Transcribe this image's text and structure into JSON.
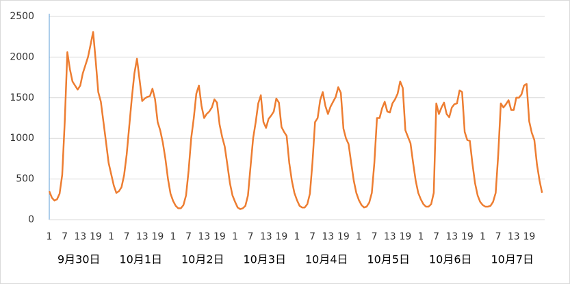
{
  "chart_data": {
    "type": "line",
    "categories": [
      "1",
      null,
      null,
      null,
      null,
      null,
      "7",
      null,
      null,
      null,
      null,
      null,
      "13",
      null,
      null,
      null,
      null,
      null,
      "19",
      null,
      null,
      null,
      null,
      null,
      "1",
      null,
      null,
      null,
      null,
      null,
      "7",
      null,
      null,
      null,
      null,
      null,
      "13",
      null,
      null,
      null,
      null,
      null,
      "19",
      null,
      null,
      null,
      null,
      null,
      "1",
      null,
      null,
      null,
      null,
      null,
      "7",
      null,
      null,
      null,
      null,
      null,
      "13",
      null,
      null,
      null,
      null,
      null,
      "19",
      null,
      null,
      null,
      null,
      null,
      "1",
      null,
      null,
      null,
      null,
      null,
      "7",
      null,
      null,
      null,
      null,
      null,
      "13",
      null,
      null,
      null,
      null,
      null,
      "19",
      null,
      null,
      null,
      null,
      null,
      "1",
      null,
      null,
      null,
      null,
      null,
      "7",
      null,
      null,
      null,
      null,
      null,
      "13",
      null,
      null,
      null,
      null,
      null,
      "19",
      null,
      null,
      null,
      null,
      null,
      "1",
      null,
      null,
      null,
      null,
      null,
      "7",
      null,
      null,
      null,
      null,
      null,
      "13",
      null,
      null,
      null,
      null,
      null,
      "19",
      null,
      null,
      null,
      null,
      null,
      "1",
      null,
      null,
      null,
      null,
      null,
      "7",
      null,
      null,
      null,
      null,
      null,
      "13",
      null,
      null,
      null,
      null,
      null,
      "19",
      null,
      null,
      null,
      null,
      null,
      "1",
      null,
      null,
      null,
      null,
      null,
      "7",
      null,
      null,
      null,
      null,
      null,
      "13",
      null,
      null,
      null,
      null,
      null,
      "19",
      null,
      null,
      null,
      null,
      null
    ],
    "days": [
      "9月30日",
      "10月1日",
      "10月2日",
      "10月3日",
      "10月4日",
      "10月5日",
      "10月6日",
      "10月7日"
    ],
    "series": [
      {
        "color": "#ed7d31",
        "values": [
          350,
          270,
          235,
          250,
          320,
          550,
          1200,
          2060,
          1850,
          1700,
          1650,
          1600,
          1650,
          1800,
          1900,
          2000,
          2150,
          2310,
          1950,
          1570,
          1450,
          1200,
          950,
          700,
          560,
          420,
          330,
          350,
          400,
          550,
          800,
          1150,
          1500,
          1800,
          1980,
          1720,
          1460,
          1490,
          1510,
          1520,
          1610,
          1480,
          1200,
          1100,
          950,
          750,
          500,
          320,
          230,
          170,
          140,
          140,
          180,
          300,
          600,
          1000,
          1250,
          1550,
          1650,
          1400,
          1250,
          1300,
          1330,
          1380,
          1480,
          1440,
          1170,
          1020,
          900,
          680,
          450,
          300,
          220,
          150,
          130,
          140,
          170,
          300,
          650,
          1000,
          1200,
          1430,
          1530,
          1200,
          1130,
          1240,
          1280,
          1330,
          1490,
          1440,
          1140,
          1080,
          1030,
          700,
          480,
          330,
          240,
          170,
          150,
          150,
          190,
          320,
          700,
          1200,
          1250,
          1470,
          1570,
          1400,
          1300,
          1390,
          1450,
          1510,
          1630,
          1560,
          1120,
          1000,
          930,
          700,
          480,
          330,
          240,
          180,
          150,
          160,
          210,
          330,
          700,
          1250,
          1250,
          1370,
          1450,
          1330,
          1320,
          1430,
          1480,
          1550,
          1700,
          1620,
          1100,
          1020,
          940,
          700,
          480,
          330,
          250,
          190,
          160,
          160,
          190,
          330,
          1430,
          1300,
          1380,
          1440,
          1300,
          1260,
          1380,
          1420,
          1430,
          1590,
          1570,
          1080,
          980,
          970,
          690,
          450,
          300,
          220,
          180,
          160,
          160,
          170,
          220,
          330,
          800,
          1430,
          1380,
          1420,
          1470,
          1350,
          1350,
          1500,
          1500,
          1540,
          1650,
          1670,
          1210,
          1070,
          980,
          680,
          480,
          330
        ]
      }
    ],
    "ylim": [
      0,
      2500
    ],
    "yticks": [
      0,
      500,
      1000,
      1500,
      2000,
      2500
    ],
    "grid": true
  }
}
